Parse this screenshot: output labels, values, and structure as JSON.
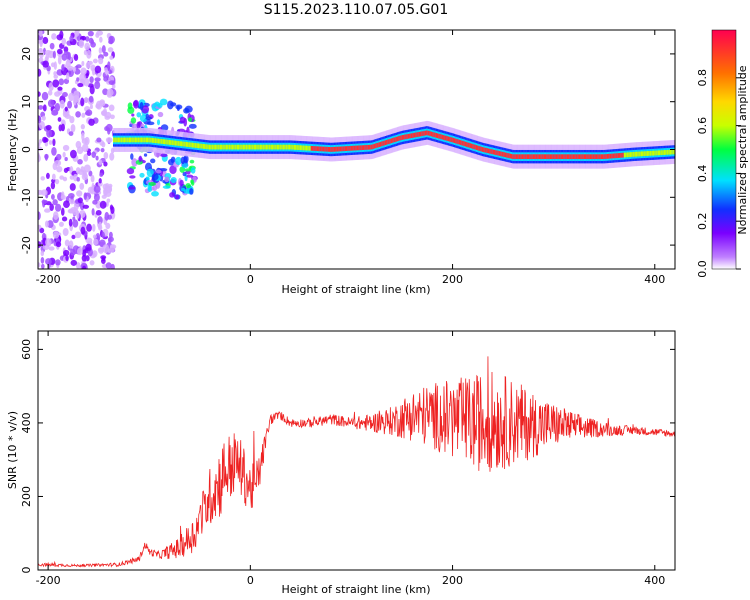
{
  "title": "S115.2023.110.07.05.G01",
  "chart_data": [
    {
      "type": "heatmap",
      "xlabel": "Height of straight line (km)",
      "ylabel": "Frequency (Hz)",
      "xlim": [
        -210,
        420
      ],
      "ylim": [
        -25,
        25
      ],
      "xticks": [
        -200,
        0,
        200,
        400
      ],
      "yticks": [
        -20,
        -10,
        0,
        10,
        20
      ],
      "ridge": {
        "x": [
          -135,
          -100,
          -60,
          -40,
          0,
          40,
          80,
          120,
          150,
          175,
          200,
          230,
          260,
          300,
          350,
          380,
          420
        ],
        "y": [
          2,
          2,
          1,
          0.5,
          0.5,
          0.5,
          0,
          0.5,
          2.5,
          3.5,
          2,
          0,
          -1.5,
          -1.5,
          -1.5,
          -1,
          -0.5
        ]
      },
      "noise_region_x": [
        -210,
        -135
      ],
      "colorbar": {
        "label": "Normalized spectral amplitude",
        "range": [
          0,
          1
        ],
        "ticks": [
          "0.0",
          "0.2",
          "0.4",
          "0.6",
          "0.8"
        ],
        "palette": [
          "#ffffff",
          "#c080ff",
          "#7a00ff",
          "#1030ff",
          "#00e0ff",
          "#00ff40",
          "#c8ff00",
          "#ffd800",
          "#ff7000",
          "#ff0050"
        ]
      }
    },
    {
      "type": "line",
      "xlabel": "Height of straight line (km)",
      "ylabel": "SNR (10 * v/v)",
      "xlim": [
        -210,
        420
      ],
      "ylim": [
        0,
        650
      ],
      "xticks": [
        -200,
        0,
        200,
        400
      ],
      "yticks": [
        0,
        200,
        400,
        600
      ],
      "series": [
        {
          "color": "#ee2222",
          "x": [
            -210,
            -170,
            -130,
            -110,
            -104,
            -100,
            -90,
            -70,
            -55,
            -40,
            -30,
            -25,
            -15,
            -10,
            0,
            5,
            10,
            15,
            20,
            30,
            40,
            60,
            80,
            100,
            120,
            140,
            160,
            180,
            200,
            220,
            240,
            260,
            280,
            300,
            320,
            340,
            360,
            380,
            400,
            420
          ],
          "y": [
            15,
            12,
            15,
            30,
            70,
            50,
            40,
            60,
            100,
            200,
            240,
            270,
            290,
            280,
            220,
            230,
            280,
            350,
            410,
            420,
            400,
            400,
            410,
            400,
            400,
            405,
            420,
            420,
            410,
            400,
            405,
            400,
            395,
            395,
            390,
            385,
            380,
            380,
            375,
            370
          ],
          "amplitude": [
            5,
            3,
            5,
            8,
            10,
            10,
            10,
            30,
            50,
            80,
            100,
            100,
            90,
            80,
            70,
            60,
            50,
            25,
            15,
            12,
            12,
            12,
            15,
            15,
            25,
            40,
            70,
            90,
            110,
            130,
            140,
            120,
            90,
            60,
            40,
            25,
            15,
            12,
            10,
            10
          ]
        }
      ]
    }
  ]
}
